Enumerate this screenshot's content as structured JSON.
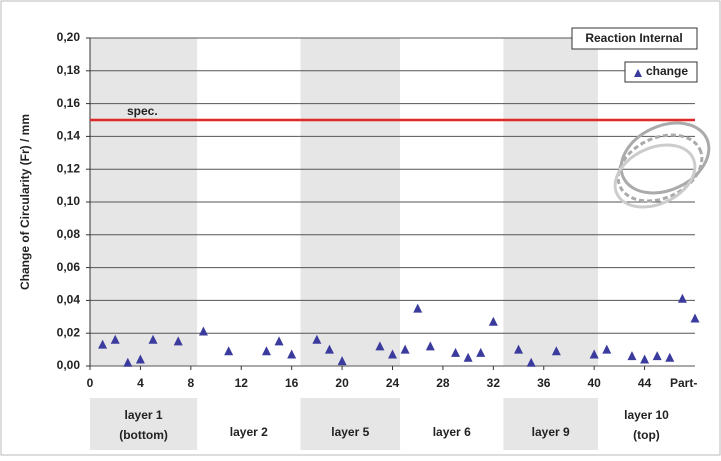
{
  "chart_data": {
    "type": "scatter",
    "title": "Reaction Internal",
    "y_label": "Change of Circularity (Fr) / mm",
    "x_label": "Part-",
    "xlim": [
      0,
      48
    ],
    "ylim": [
      0,
      0.2
    ],
    "xticks": [
      0,
      4,
      8,
      12,
      16,
      20,
      24,
      28,
      32,
      36,
      40,
      44
    ],
    "yticks": [
      {
        "value": 0,
        "label": "0,00"
      },
      {
        "value": 0.02,
        "label": "0,02"
      },
      {
        "value": 0.04,
        "label": "0,04"
      },
      {
        "value": 0.06,
        "label": "0,06"
      },
      {
        "value": 0.08,
        "label": "0,08"
      },
      {
        "value": 0.1,
        "label": "0,10"
      },
      {
        "value": 0.12,
        "label": "0,12"
      },
      {
        "value": 0.14,
        "label": "0,14"
      },
      {
        "value": 0.16,
        "label": "0,16"
      },
      {
        "value": 0.18,
        "label": "0,18"
      },
      {
        "value": 0.2,
        "label": "0,20"
      }
    ],
    "grid": true,
    "legend_position": "upper right",
    "series": [
      {
        "name": "change",
        "color": "#3b3b9e",
        "x": [
          1,
          2,
          3,
          4,
          5,
          7,
          9,
          11,
          14,
          15,
          16,
          18,
          19,
          20,
          23,
          24,
          25,
          26,
          27,
          29,
          30,
          31,
          32,
          34,
          35,
          37,
          40,
          41,
          43,
          44,
          45,
          46,
          47,
          48
        ],
        "values": [
          0.013,
          0.016,
          0.002,
          0.004,
          0.016,
          0.015,
          0.021,
          0.009,
          0.009,
          0.015,
          0.007,
          0.016,
          0.01,
          0.003,
          0.012,
          0.007,
          0.01,
          0.035,
          0.012,
          0.008,
          0.005,
          0.008,
          0.027,
          0.01,
          0.002,
          0.009,
          0.007,
          0.01,
          0.006,
          0.004,
          0.006,
          0.005,
          0.041,
          0.029
        ]
      }
    ],
    "reference_lines": [
      {
        "value": 0.15,
        "label": "spec.",
        "color": "#e02828"
      }
    ],
    "layers": [
      {
        "name": "layer 1",
        "sub": "(bottom)",
        "span": [
          0,
          8.5
        ],
        "shaded": true
      },
      {
        "name": "layer 2",
        "span": [
          8.5,
          16.7
        ],
        "shaded": false
      },
      {
        "name": "layer 5",
        "span": [
          16.7,
          24.6
        ],
        "shaded": true
      },
      {
        "name": "layer 6",
        "span": [
          24.6,
          32.8
        ],
        "shaded": false
      },
      {
        "name": "layer 9",
        "span": [
          32.8,
          40.3
        ],
        "shaded": true
      },
      {
        "name": "layer 10",
        "sub": "(top)",
        "span": [
          40.3,
          48
        ],
        "shaded": false
      }
    ]
  }
}
